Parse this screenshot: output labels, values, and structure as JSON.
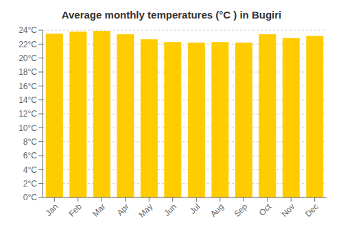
{
  "chart_data": {
    "type": "bar",
    "title": "Average monthly temperatures (°C ) in Bugiri",
    "categories": [
      "Jan",
      "Feb",
      "Mar",
      "Apr",
      "May",
      "Jun",
      "Jul",
      "Aug",
      "Sep",
      "Oct",
      "Nov",
      "Dec"
    ],
    "values": [
      23.5,
      23.8,
      23.9,
      23.4,
      22.7,
      22.3,
      22.2,
      22.3,
      22.2,
      23.4,
      22.9,
      23.2
    ],
    "color": "#FFCC00",
    "ylim": [
      0,
      24
    ],
    "yticks": [
      {
        "value": 0,
        "label": "0°C"
      },
      {
        "value": 2,
        "label": "2°C"
      },
      {
        "value": 4,
        "label": "4°C"
      },
      {
        "value": 6,
        "label": "6°C"
      },
      {
        "value": 8,
        "label": "8°C"
      },
      {
        "value": 10,
        "label": "10°C"
      },
      {
        "value": 12,
        "label": "12°C"
      },
      {
        "value": 14,
        "label": "14°C"
      },
      {
        "value": 16,
        "label": "16°C"
      },
      {
        "value": 18,
        "label": "18°C"
      },
      {
        "value": 20,
        "label": "20°C"
      },
      {
        "value": 22,
        "label": "22°C"
      },
      {
        "value": 24,
        "label": "24°C"
      }
    ],
    "grid": true
  }
}
